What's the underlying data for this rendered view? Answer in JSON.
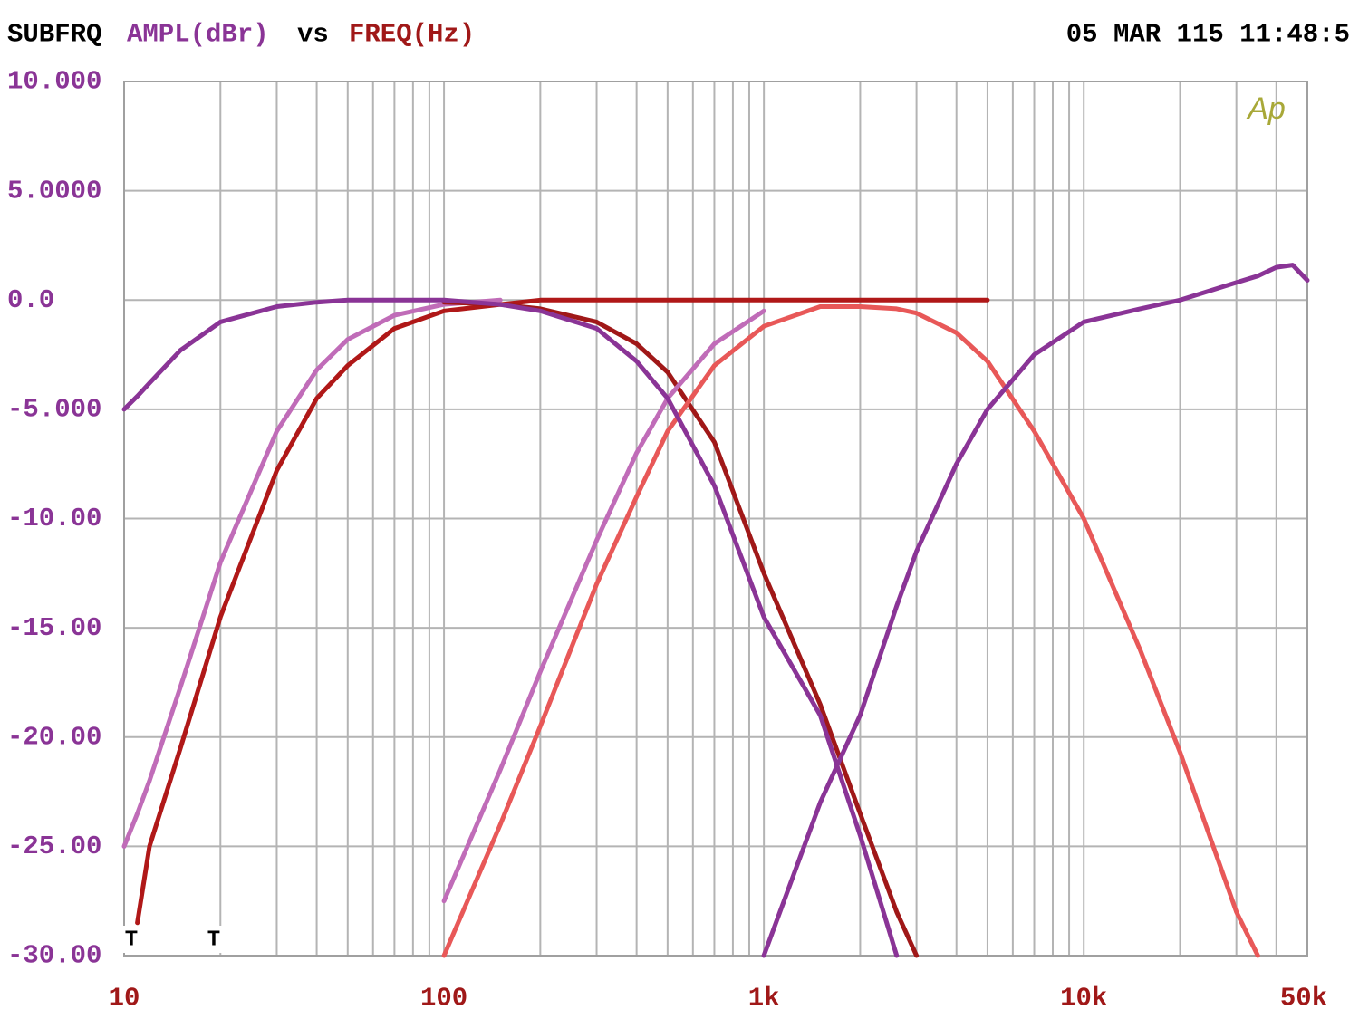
{
  "chart_data": {
    "type": "line",
    "header": {
      "left": "SUBFRQ",
      "yname": "AMPL(dBr)",
      "vs": "vs",
      "xname": "FREQ(Hz)",
      "timestamp": "05 MAR 115 11:48:5"
    },
    "logo": "Ap",
    "markers": [
      "T",
      "T"
    ],
    "xlog": true,
    "grid": true,
    "xlim": [
      10,
      50000
    ],
    "ylim": [
      -30,
      10
    ],
    "xticks": [
      10,
      100,
      {
        "value": 1000,
        "label": "1k"
      },
      {
        "value": 10000,
        "label": "10k"
      },
      {
        "value": 50000,
        "label": "50k"
      }
    ],
    "xminor": [
      20,
      30,
      40,
      50,
      60,
      70,
      80,
      90,
      200,
      300,
      400,
      500,
      600,
      700,
      800,
      900,
      2000,
      3000,
      4000,
      5000,
      6000,
      7000,
      8000,
      9000,
      20000,
      30000,
      40000
    ],
    "yticks": [
      {
        "value": 10,
        "label": "10.000"
      },
      {
        "value": 5,
        "label": "5.0000"
      },
      {
        "value": 0,
        "label": "0.0"
      },
      {
        "value": -5,
        "label": "-5.000"
      },
      {
        "value": -10,
        "label": "-10.00"
      },
      {
        "value": -15,
        "label": "-15.00"
      },
      {
        "value": -20,
        "label": "-20.00"
      },
      {
        "value": -25,
        "label": "-25.00"
      },
      {
        "value": -30,
        "label": "-30.00"
      }
    ],
    "x": [
      10,
      11,
      12,
      15,
      20,
      30,
      40,
      50,
      70,
      100,
      150,
      200,
      300,
      400,
      500,
      700,
      1000,
      1500,
      2000,
      2600,
      3000,
      4000,
      5000,
      7000,
      10000,
      15000,
      20000,
      30000,
      35000,
      40000,
      45000,
      50000
    ],
    "series": [
      {
        "color": "#c06cb8",
        "values": [
          -25,
          -23.5,
          -22,
          -17.7,
          -12,
          -6,
          -3.2,
          -1.8,
          -0.7,
          -0.2,
          0,
          null,
          null,
          null,
          null,
          null,
          null,
          null,
          null,
          null,
          null,
          null,
          null,
          null,
          null,
          null,
          null,
          null,
          null,
          null,
          null,
          null
        ]
      },
      {
        "color": "#b01818",
        "values": [
          null,
          -28.5,
          -25,
          -20.5,
          -14.5,
          -7.8,
          -4.5,
          -3,
          -1.3,
          -0.5,
          -0.2,
          0,
          0,
          0,
          0,
          0,
          0,
          0,
          0,
          0,
          0,
          0,
          0,
          null,
          null,
          null,
          null,
          null,
          null,
          null,
          null,
          null
        ]
      },
      {
        "color": "#a01818",
        "values": [
          null,
          null,
          null,
          null,
          null,
          null,
          null,
          null,
          null,
          -0.1,
          -0.2,
          -0.4,
          -1,
          -2,
          -3.3,
          -6.5,
          -12.5,
          -18.5,
          -23.5,
          -28,
          -30,
          null,
          null,
          null,
          null,
          null,
          null,
          null,
          null,
          null,
          null,
          null
        ]
      },
      {
        "color": "#c06cb8",
        "values": [
          null,
          null,
          null,
          null,
          null,
          null,
          null,
          null,
          null,
          -27.5,
          -21.5,
          -17,
          -11,
          -7,
          -4.5,
          -2,
          -0.5,
          null,
          null,
          null,
          null,
          null,
          null,
          null,
          null,
          null,
          null,
          null,
          null,
          null,
          null,
          null
        ]
      },
      {
        "color": "#e85858",
        "values": [
          null,
          null,
          null,
          null,
          null,
          null,
          null,
          null,
          null,
          -30,
          -24,
          -19.5,
          -13,
          -9,
          -6,
          -3,
          -1.2,
          -0.3,
          -0.3,
          -0.4,
          -0.6,
          -1.5,
          -2.8,
          -6,
          -10,
          -16,
          -20.7,
          -28,
          -30,
          null,
          null,
          null
        ]
      },
      {
        "color": "#8a3496",
        "values": [
          -5,
          -4.4,
          -3.8,
          -2.3,
          -1,
          -0.3,
          -0.1,
          0,
          0,
          0,
          -0.2,
          -0.5,
          -1.3,
          -2.8,
          -4.5,
          -8.5,
          -14.5,
          -19,
          -24.5,
          -30,
          null,
          null,
          null,
          null,
          null,
          null,
          null,
          null,
          null,
          null,
          null,
          null
        ]
      },
      {
        "color": "#8a3496",
        "values": [
          null,
          null,
          null,
          null,
          null,
          null,
          null,
          null,
          null,
          null,
          null,
          null,
          null,
          null,
          null,
          null,
          -30,
          -23,
          -19,
          -14,
          -11.5,
          -7.5,
          -5,
          -2.5,
          -1,
          -0.4,
          0,
          0.8,
          1.1,
          1.5,
          1.6,
          0.9
        ]
      }
    ]
  }
}
